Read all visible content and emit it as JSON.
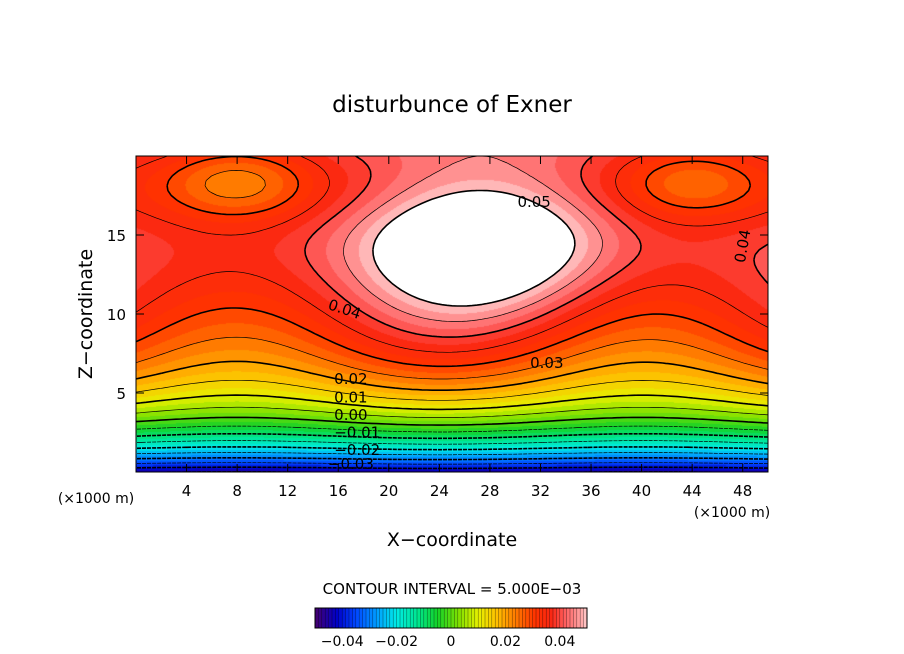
{
  "title": "disturbunce of Exner",
  "xlabel": "X−coordinate",
  "ylabel": "Z−coordinate",
  "x_unit": "(×1000 m)",
  "y_unit": "(×1000 m)",
  "contour_interval_text": "CONTOUR INTERVAL = 5.000E−03",
  "chart_data": {
    "type": "heatmap",
    "title": "disturbunce of Exner",
    "xlabel": "X−coordinate",
    "ylabel": "Z−coordinate",
    "xlim": [
      0,
      50
    ],
    "ylim": [
      0,
      20
    ],
    "x_ticks": [
      4,
      8,
      12,
      16,
      20,
      24,
      28,
      32,
      36,
      40,
      44,
      48
    ],
    "y_ticks": [
      5,
      10,
      15
    ],
    "contour_interval": 0.005,
    "value_range": [
      -0.045,
      0.05
    ],
    "contour_labels": [
      {
        "text": "0.05",
        "x": 31.5,
        "z": 17.1
      },
      {
        "text": "0.04",
        "x": 16.5,
        "z": 10.3
      },
      {
        "text": "0.04",
        "x": 48.0,
        "z": 14.3
      },
      {
        "text": "0.03",
        "x": 32.5,
        "z": 6.9
      },
      {
        "text": "0.02",
        "x": 17.0,
        "z": 5.9
      },
      {
        "text": "0.01",
        "x": 17.0,
        "z": 4.7
      },
      {
        "text": "0.00",
        "x": 17.0,
        "z": 3.6
      },
      {
        "text": "−0.01",
        "x": 17.5,
        "z": 2.5
      },
      {
        "text": "−0.02",
        "x": 17.5,
        "z": 1.4
      },
      {
        "text": "−0.03",
        "x": 17.0,
        "z": 0.5
      }
    ],
    "colorbar": {
      "range": [
        -0.05,
        0.05
      ],
      "ticks": [
        "−0.04",
        "−0.02",
        "0",
        "0.02",
        "0.04"
      ]
    },
    "grid": false,
    "legend": "colorbar-bottom"
  }
}
